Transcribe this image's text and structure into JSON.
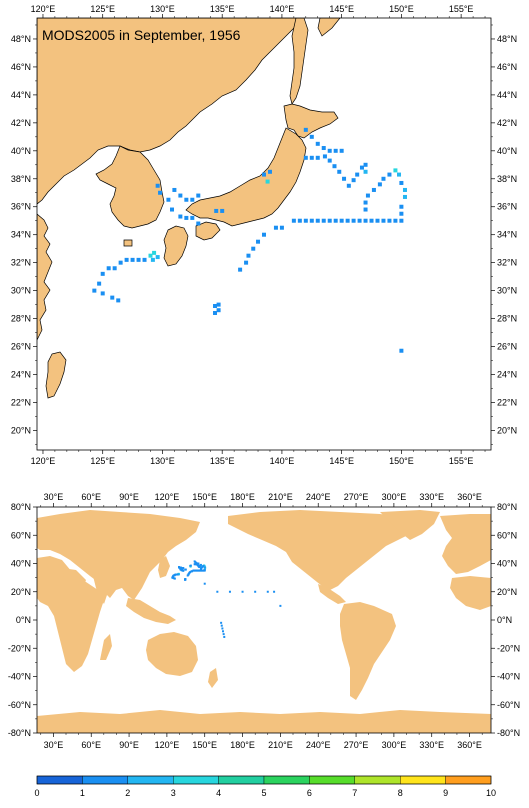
{
  "top_map": {
    "title": "MODS2005 in September, 1956",
    "lon_labels": [
      "120°E",
      "125°E",
      "130°E",
      "135°E",
      "140°E",
      "145°E",
      "150°E",
      "155°E"
    ],
    "lat_labels": [
      "20°N",
      "22°N",
      "24°N",
      "26°N",
      "28°N",
      "30°N",
      "32°N",
      "34°N",
      "36°N",
      "38°N",
      "40°N",
      "42°N",
      "44°N",
      "46°N",
      "48°N"
    ],
    "lon_range": [
      119.5,
      157.5
    ],
    "lat_range": [
      18.6,
      49.5
    ]
  },
  "bottom_map": {
    "lon_labels": [
      "30°E",
      "60°E",
      "90°E",
      "120°E",
      "150°E",
      "180°E",
      "210°E",
      "240°E",
      "270°E",
      "300°E",
      "330°E",
      "360°E"
    ],
    "lat_labels": [
      "-80°N",
      "-60°N",
      "-40°N",
      "-20°N",
      "0°N",
      "20°N",
      "40°N",
      "60°N",
      "80°N"
    ],
    "lon_range": [
      17,
      377
    ],
    "lat_range": [
      -80,
      80
    ]
  },
  "colorbar": {
    "labels": [
      "0",
      "1",
      "2",
      "3",
      "4",
      "5",
      "6",
      "7",
      "8",
      "9",
      "10"
    ],
    "colors": [
      "#1764d8",
      "#1a8ff2",
      "#23b6f2",
      "#27d6de",
      "#22cfa0",
      "#2bd35f",
      "#57dd2b",
      "#aee42a",
      "#ffe41c",
      "#ff9e1e",
      "#f05a1c"
    ]
  },
  "land_color": "#f3c27f",
  "observations": [
    {
      "lon": 141.0,
      "lat": 35.0,
      "v": 1
    },
    {
      "lon": 141.5,
      "lat": 35.0,
      "v": 1
    },
    {
      "lon": 142.0,
      "lat": 35.0,
      "v": 1
    },
    {
      "lon": 142.5,
      "lat": 35.0,
      "v": 1
    },
    {
      "lon": 143.0,
      "lat": 35.0,
      "v": 1
    },
    {
      "lon": 143.5,
      "lat": 35.0,
      "v": 1
    },
    {
      "lon": 144.0,
      "lat": 35.0,
      "v": 1
    },
    {
      "lon": 144.5,
      "lat": 35.0,
      "v": 1
    },
    {
      "lon": 145.0,
      "lat": 35.0,
      "v": 1
    },
    {
      "lon": 145.5,
      "lat": 35.0,
      "v": 1
    },
    {
      "lon": 146.0,
      "lat": 35.0,
      "v": 1
    },
    {
      "lon": 146.5,
      "lat": 35.0,
      "v": 1
    },
    {
      "lon": 147.0,
      "lat": 35.0,
      "v": 1
    },
    {
      "lon": 147.5,
      "lat": 35.0,
      "v": 1
    },
    {
      "lon": 148.0,
      "lat": 35.0,
      "v": 1
    },
    {
      "lon": 148.5,
      "lat": 35.0,
      "v": 1
    },
    {
      "lon": 149.0,
      "lat": 35.0,
      "v": 1
    },
    {
      "lon": 149.5,
      "lat": 35.0,
      "v": 1
    },
    {
      "lon": 150.0,
      "lat": 35.0,
      "v": 1
    },
    {
      "lon": 150.0,
      "lat": 35.5,
      "v": 1
    },
    {
      "lon": 150.0,
      "lat": 36.0,
      "v": 1
    },
    {
      "lon": 150.3,
      "lat": 36.7,
      "v": 2
    },
    {
      "lon": 150.3,
      "lat": 37.2,
      "v": 2
    },
    {
      "lon": 150.0,
      "lat": 37.7,
      "v": 1
    },
    {
      "lon": 149.8,
      "lat": 38.3,
      "v": 2
    },
    {
      "lon": 149.5,
      "lat": 38.6,
      "v": 3
    },
    {
      "lon": 149.0,
      "lat": 38.3,
      "v": 1
    },
    {
      "lon": 148.5,
      "lat": 38.0,
      "v": 1
    },
    {
      "lon": 148.2,
      "lat": 37.6,
      "v": 1
    },
    {
      "lon": 147.7,
      "lat": 37.2,
      "v": 1
    },
    {
      "lon": 147.2,
      "lat": 36.8,
      "v": 1
    },
    {
      "lon": 147.0,
      "lat": 36.3,
      "v": 1
    },
    {
      "lon": 147.0,
      "lat": 35.8,
      "v": 1
    },
    {
      "lon": 147.0,
      "lat": 39.0,
      "v": 1
    },
    {
      "lon": 147.0,
      "lat": 38.5,
      "v": 2
    },
    {
      "lon": 146.7,
      "lat": 38.8,
      "v": 1
    },
    {
      "lon": 146.3,
      "lat": 38.3,
      "v": 1
    },
    {
      "lon": 146.0,
      "lat": 37.9,
      "v": 1
    },
    {
      "lon": 145.6,
      "lat": 37.5,
      "v": 1
    },
    {
      "lon": 145.2,
      "lat": 38.0,
      "v": 1
    },
    {
      "lon": 144.8,
      "lat": 38.5,
      "v": 1
    },
    {
      "lon": 144.4,
      "lat": 38.9,
      "v": 1
    },
    {
      "lon": 144.0,
      "lat": 39.3,
      "v": 1
    },
    {
      "lon": 143.6,
      "lat": 39.6,
      "v": 1
    },
    {
      "lon": 143.0,
      "lat": 39.5,
      "v": 1
    },
    {
      "lon": 142.5,
      "lat": 39.5,
      "v": 1
    },
    {
      "lon": 142.0,
      "lat": 39.5,
      "v": 1
    },
    {
      "lon": 142.0,
      "lat": 41.5,
      "v": 1
    },
    {
      "lon": 142.5,
      "lat": 41.0,
      "v": 1
    },
    {
      "lon": 143.0,
      "lat": 40.5,
      "v": 1
    },
    {
      "lon": 143.5,
      "lat": 40.2,
      "v": 1
    },
    {
      "lon": 144.0,
      "lat": 40.0,
      "v": 1
    },
    {
      "lon": 144.5,
      "lat": 40.0,
      "v": 1
    },
    {
      "lon": 145.0,
      "lat": 40.0,
      "v": 1
    },
    {
      "lon": 138.5,
      "lat": 38.3,
      "v": 1
    },
    {
      "lon": 138.8,
      "lat": 37.8,
      "v": 3
    },
    {
      "lon": 139.0,
      "lat": 38.5,
      "v": 1
    },
    {
      "lon": 140.0,
      "lat": 34.5,
      "v": 1
    },
    {
      "lon": 139.5,
      "lat": 34.5,
      "v": 1
    },
    {
      "lon": 138.5,
      "lat": 34.0,
      "v": 1
    },
    {
      "lon": 138.0,
      "lat": 33.5,
      "v": 1
    },
    {
      "lon": 137.6,
      "lat": 33.0,
      "v": 1
    },
    {
      "lon": 137.2,
      "lat": 32.5,
      "v": 1
    },
    {
      "lon": 137.0,
      "lat": 32.0,
      "v": 1
    },
    {
      "lon": 136.5,
      "lat": 31.5,
      "v": 1
    },
    {
      "lon": 134.7,
      "lat": 29.0,
      "v": 1
    },
    {
      "lon": 134.7,
      "lat": 28.6,
      "v": 1
    },
    {
      "lon": 134.4,
      "lat": 28.4,
      "v": 1
    },
    {
      "lon": 134.4,
      "lat": 28.9,
      "v": 1
    },
    {
      "lon": 150.0,
      "lat": 25.7,
      "v": 1
    },
    {
      "lon": 129.0,
      "lat": 32.5,
      "v": 3
    },
    {
      "lon": 129.3,
      "lat": 32.7,
      "v": 3
    },
    {
      "lon": 129.6,
      "lat": 32.4,
      "v": 2
    },
    {
      "lon": 129.2,
      "lat": 32.2,
      "v": 2
    },
    {
      "lon": 128.5,
      "lat": 32.2,
      "v": 1
    },
    {
      "lon": 128.0,
      "lat": 32.2,
      "v": 1
    },
    {
      "lon": 127.5,
      "lat": 32.2,
      "v": 1
    },
    {
      "lon": 127.0,
      "lat": 32.2,
      "v": 1
    },
    {
      "lon": 126.5,
      "lat": 32.0,
      "v": 1
    },
    {
      "lon": 126.0,
      "lat": 31.6,
      "v": 1
    },
    {
      "lon": 125.5,
      "lat": 31.6,
      "v": 1
    },
    {
      "lon": 125.0,
      "lat": 31.2,
      "v": 1
    },
    {
      "lon": 124.7,
      "lat": 30.5,
      "v": 1
    },
    {
      "lon": 124.3,
      "lat": 30.0,
      "v": 1
    },
    {
      "lon": 125.0,
      "lat": 29.8,
      "v": 1
    },
    {
      "lon": 125.8,
      "lat": 29.5,
      "v": 1
    },
    {
      "lon": 126.3,
      "lat": 29.3,
      "v": 1
    },
    {
      "lon": 131.0,
      "lat": 37.2,
      "v": 1
    },
    {
      "lon": 130.5,
      "lat": 36.5,
      "v": 1
    },
    {
      "lon": 131.5,
      "lat": 36.8,
      "v": 1
    },
    {
      "lon": 132.0,
      "lat": 36.5,
      "v": 1
    },
    {
      "lon": 132.5,
      "lat": 36.5,
      "v": 1
    },
    {
      "lon": 133.0,
      "lat": 36.8,
      "v": 1
    },
    {
      "lon": 130.8,
      "lat": 35.8,
      "v": 1
    },
    {
      "lon": 131.5,
      "lat": 35.3,
      "v": 1
    },
    {
      "lon": 132.0,
      "lat": 35.2,
      "v": 1
    },
    {
      "lon": 132.5,
      "lat": 35.2,
      "v": 1
    },
    {
      "lon": 133.0,
      "lat": 34.8,
      "v": 1
    },
    {
      "lon": 134.5,
      "lat": 35.7,
      "v": 1
    },
    {
      "lon": 135.0,
      "lat": 35.7,
      "v": 1
    },
    {
      "lon": 129.6,
      "lat": 37.5,
      "v": 1
    },
    {
      "lon": 129.8,
      "lat": 37.0,
      "v": 1
    },
    {
      "lon": 160.0,
      "lat": 20.0,
      "v": 1
    },
    {
      "lon": 170.0,
      "lat": 20.0,
      "v": 1
    },
    {
      "lon": 180.0,
      "lat": 20.0,
      "v": 1
    },
    {
      "lon": 190.0,
      "lat": 20.0,
      "v": 1
    },
    {
      "lon": 200.0,
      "lat": 20.0,
      "v": 1
    },
    {
      "lon": 205.0,
      "lat": 20.0,
      "v": 1
    },
    {
      "lon": 210.0,
      "lat": 10.0,
      "v": 1
    },
    {
      "lon": 163.0,
      "lat": -2.0,
      "v": 1
    },
    {
      "lon": 163.5,
      "lat": -4.0,
      "v": 1
    },
    {
      "lon": 164.0,
      "lat": -6.0,
      "v": 1
    },
    {
      "lon": 164.5,
      "lat": -8.0,
      "v": 1
    },
    {
      "lon": 165.0,
      "lat": -10.0,
      "v": 1
    },
    {
      "lon": 165.5,
      "lat": -12.0,
      "v": 1
    }
  ]
}
